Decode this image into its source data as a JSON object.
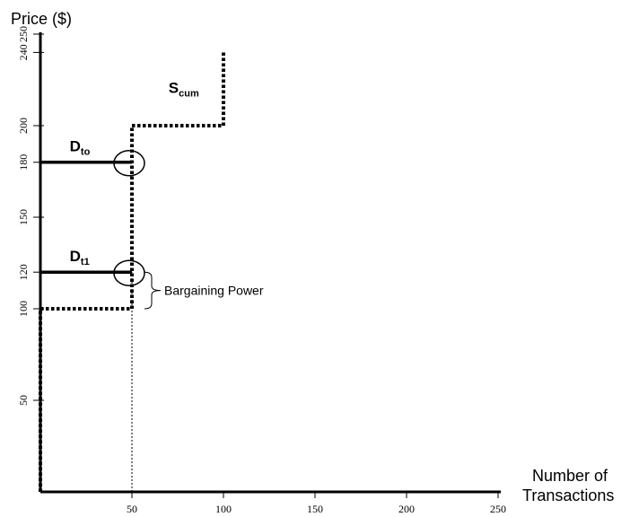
{
  "chart_data": {
    "type": "line",
    "ylabel": "Price ($)",
    "xlabel_line1": "Number of",
    "xlabel_line2": "Transactions",
    "xlim": [
      0,
      250
    ],
    "ylim": [
      0,
      250
    ],
    "x_ticks": [
      "50",
      "100",
      "150",
      "200",
      "250"
    ],
    "y_ticks": [
      "50",
      "100",
      "120",
      "150",
      "180",
      "200",
      "240",
      "250"
    ],
    "grid": false,
    "series": [
      {
        "name": "S_cum",
        "label_main": "S",
        "label_sub": "cum",
        "style": "dotted",
        "points": [
          [
            0,
            0
          ],
          [
            0,
            100
          ],
          [
            50,
            100
          ],
          [
            50,
            200
          ],
          [
            100,
            200
          ],
          [
            100,
            240
          ]
        ]
      },
      {
        "name": "D_to",
        "label_main": "D",
        "label_sub": "to",
        "style": "solid",
        "points": [
          [
            0,
            180
          ],
          [
            50,
            180
          ]
        ]
      },
      {
        "name": "D_t1",
        "label_main": "D",
        "label_sub": "t1",
        "style": "solid",
        "points": [
          [
            0,
            120
          ],
          [
            50,
            120
          ]
        ]
      }
    ],
    "annotations": [
      {
        "text": "Bargaining Power",
        "type": "brace",
        "y_range": [
          100,
          120
        ],
        "x": 50
      }
    ],
    "equilibrium_markers": [
      [
        50,
        180
      ],
      [
        50,
        120
      ]
    ],
    "guide_line": {
      "style": "dashed-thin",
      "x": 50,
      "y_range": [
        0,
        120
      ]
    }
  }
}
